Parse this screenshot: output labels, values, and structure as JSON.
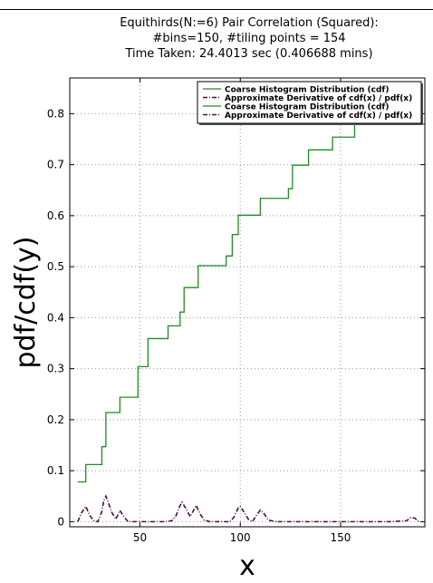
{
  "chart_data": {
    "type": "line",
    "title_lines": [
      "Equithirds(N:=6) Pair Correlation (Squared):",
      "#bins=150, #tiling points = 154",
      "Time Taken: 24.4013 sec (0.406688 mins)"
    ],
    "xlabel": "x",
    "ylabel": "pdf/cdf(y)",
    "xlim": [
      15,
      192
    ],
    "ylim": [
      -0.01,
      0.87
    ],
    "xticks": [
      50,
      100,
      150
    ],
    "yticks": [
      0,
      0.1,
      0.2,
      0.3,
      0.4,
      0.5,
      0.6,
      0.7,
      0.8
    ],
    "ytick_labels": [
      "0",
      "0.1",
      "0.2",
      "0.3",
      "0.4",
      "0.5",
      "0.6",
      "0.7",
      "0.8"
    ],
    "grid": true,
    "legend_position": "top-right",
    "colors": {
      "cdf": "#228b22",
      "pdf": "#4b0f4b"
    },
    "legend": [
      {
        "label": "Coarse Histogram Distribution (cdf)",
        "style": "solid",
        "color": "#228b22"
      },
      {
        "label": "Approximate Derivative of cdf(x) / pdf(x)",
        "style": "dashdot",
        "color": "#4b0f4b"
      },
      {
        "label": "Coarse Histogram Distribution (cdf)",
        "style": "solid",
        "color": "#228b22"
      },
      {
        "label": "Approximate Derivative of cdf(x) / pdf(x)",
        "style": "dashdot",
        "color": "#4b0f4b"
      }
    ],
    "series": [
      {
        "kind": "step",
        "x": [
          19,
          23,
          31,
          33,
          40,
          49,
          54,
          64,
          70,
          72,
          79,
          93,
          96,
          99,
          110,
          124,
          126,
          134,
          146,
          157
        ],
        "y": [
          0.078,
          0.112,
          0.147,
          0.214,
          0.244,
          0.304,
          0.359,
          0.384,
          0.411,
          0.459,
          0.502,
          0.521,
          0.563,
          0.601,
          0.634,
          0.653,
          0.699,
          0.729,
          0.754,
          0.78
        ]
      },
      {
        "kind": "line",
        "x": [
          19,
          21,
          23,
          25,
          27,
          29,
          31,
          32,
          33,
          34,
          36,
          38,
          40,
          42,
          44,
          48,
          55,
          62,
          66,
          68,
          70,
          71,
          73,
          75,
          77,
          78,
          80,
          82,
          85,
          90,
          95,
          97,
          99,
          100,
          102,
          104,
          106,
          108,
          110,
          112,
          114,
          118,
          125,
          135,
          145,
          155,
          165,
          175,
          183,
          185,
          187,
          189
        ],
        "y": [
          0.0,
          0.018,
          0.03,
          0.012,
          0.002,
          0.0,
          0.02,
          0.042,
          0.05,
          0.04,
          0.018,
          0.005,
          0.022,
          0.01,
          0.0,
          0.0,
          0.0,
          0.0,
          0.002,
          0.012,
          0.032,
          0.038,
          0.025,
          0.01,
          0.024,
          0.032,
          0.015,
          0.003,
          0.0,
          0.0,
          0.0,
          0.01,
          0.027,
          0.03,
          0.018,
          0.005,
          0.0,
          0.012,
          0.023,
          0.015,
          0.003,
          0.0,
          0.0,
          0.0,
          0.0,
          0.0,
          0.0,
          0.0,
          0.002,
          0.008,
          0.007,
          0.0
        ]
      }
    ]
  }
}
